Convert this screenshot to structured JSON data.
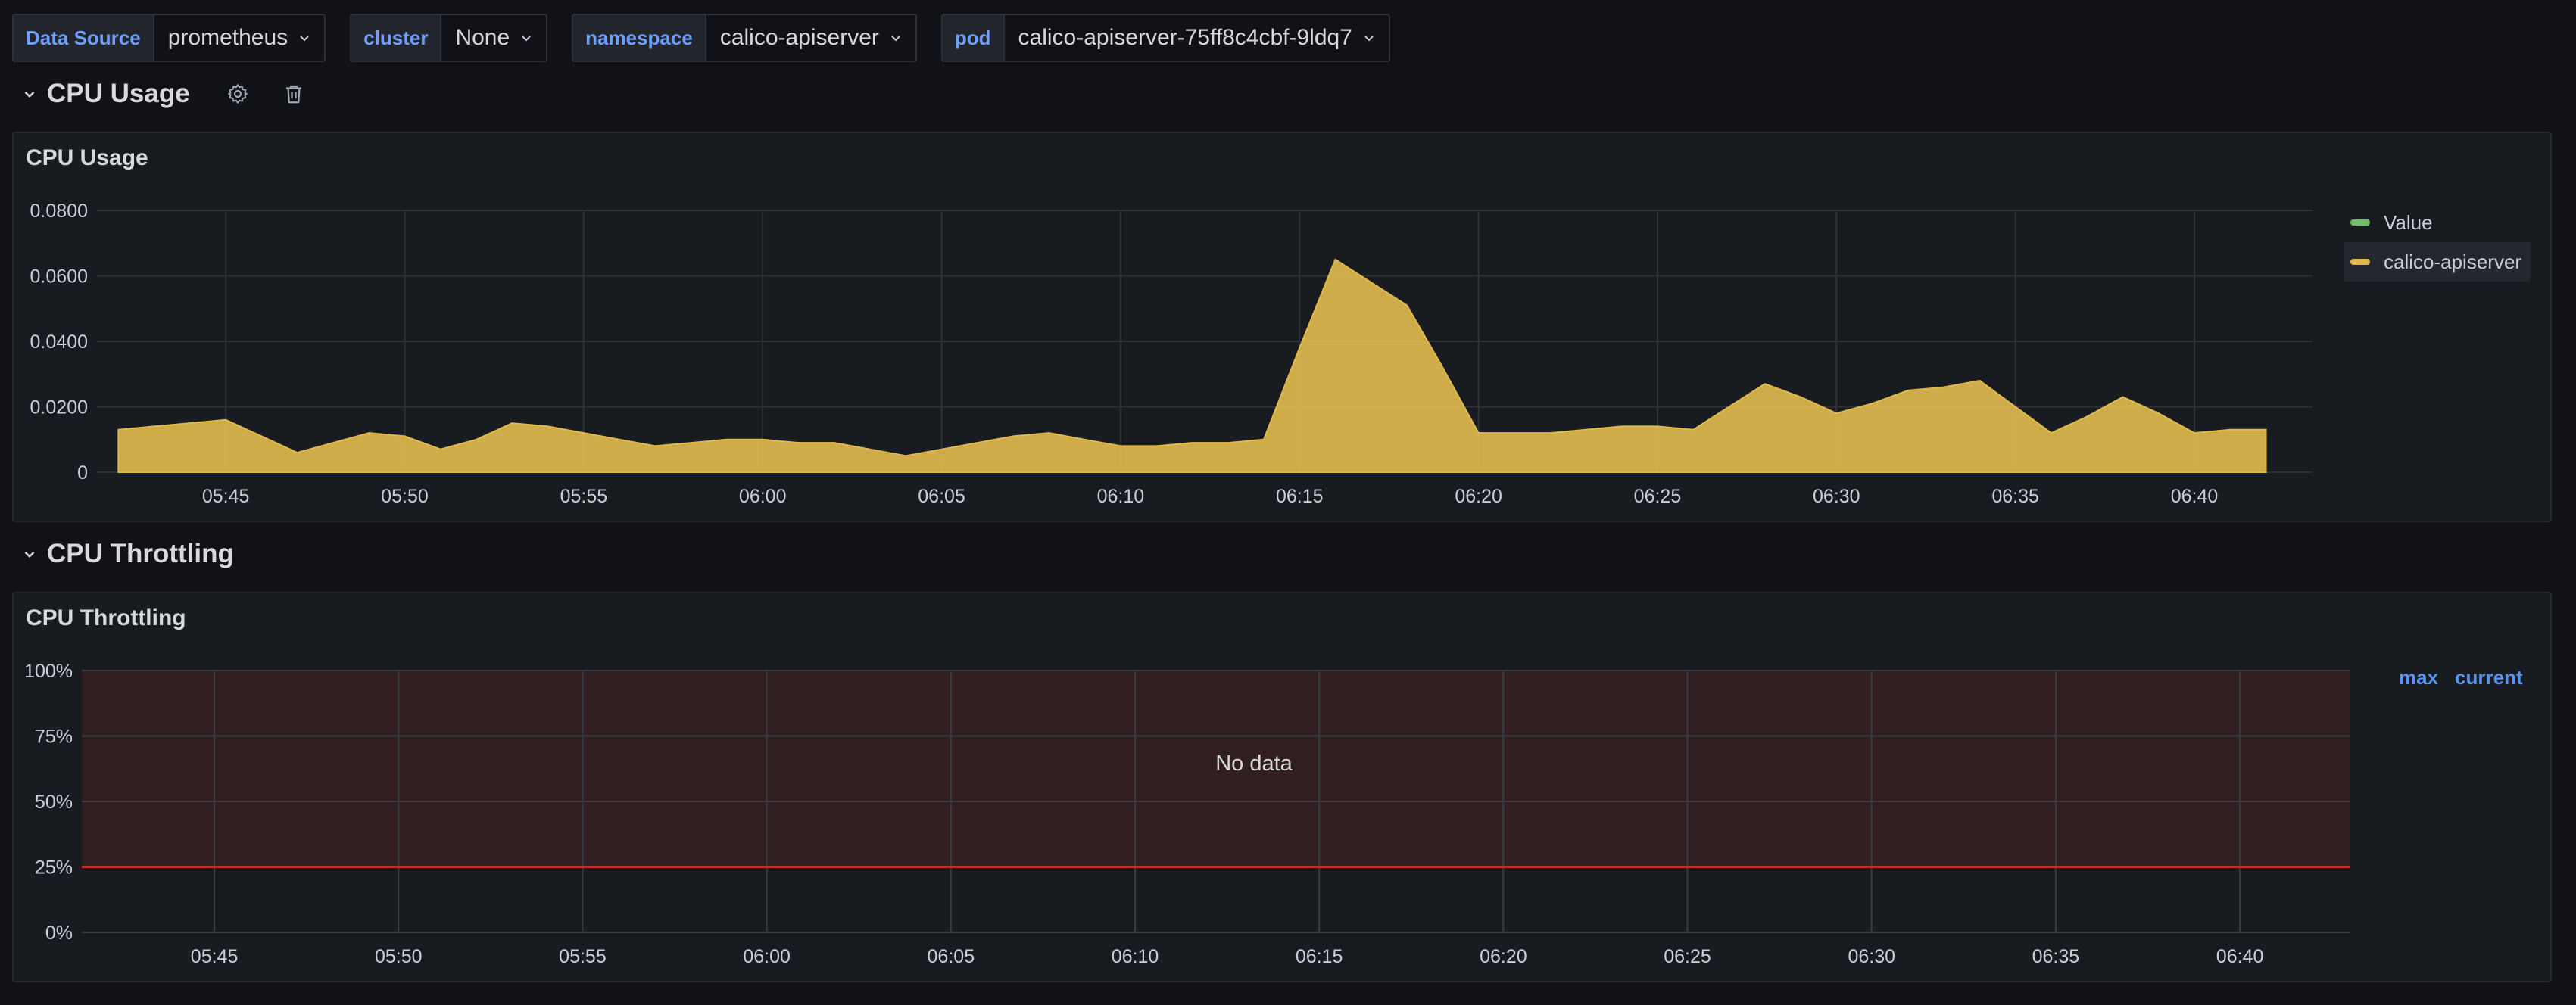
{
  "variables": [
    {
      "label": "Data Source",
      "value": "prometheus"
    },
    {
      "label": "cluster",
      "value": "None"
    },
    {
      "label": "namespace",
      "value": "calico-apiserver"
    },
    {
      "label": "pod",
      "value": "calico-apiserver-75ff8c4cbf-9ldq7"
    }
  ],
  "rows": {
    "cpu_usage": {
      "title": "CPU Usage"
    },
    "cpu_throttling": {
      "title": "CPU Throttling"
    }
  },
  "icons": {
    "row_settings": "gear-icon",
    "row_delete": "trash-icon",
    "collapse": "chevron-down-icon"
  },
  "colors": {
    "series": "#e0b94e",
    "value_legend": "#73bf69",
    "threshold": "#c4342d",
    "link": "#5794f2"
  },
  "panels": {
    "cpu_usage": {
      "title": "CPU Usage",
      "legend": [
        {
          "name": "Value",
          "color": "#73bf69"
        },
        {
          "name": "calico-apiserver",
          "color": "#e0b94e"
        }
      ]
    },
    "cpu_throttling": {
      "title": "CPU Throttling",
      "no_data": "No data",
      "legend_headers": [
        "max",
        "current"
      ]
    }
  },
  "chart_data": [
    {
      "type": "area",
      "title": "CPU Usage",
      "series": [
        {
          "name": "calico-apiserver",
          "x": [
            "05:42",
            "05:43",
            "05:44",
            "05:45",
            "05:46",
            "05:47",
            "05:48",
            "05:49",
            "05:50",
            "05:51",
            "05:52",
            "05:53",
            "05:54",
            "05:55",
            "05:56",
            "05:57",
            "05:58",
            "05:59",
            "06:00",
            "06:01",
            "06:02",
            "06:03",
            "06:04",
            "06:05",
            "06:06",
            "06:07",
            "06:08",
            "06:09",
            "06:10",
            "06:11",
            "06:12",
            "06:13",
            "06:14",
            "06:15",
            "06:16",
            "06:17",
            "06:18",
            "06:19",
            "06:20",
            "06:21",
            "06:22",
            "06:23",
            "06:24",
            "06:25",
            "06:26",
            "06:27",
            "06:28",
            "06:29",
            "06:30",
            "06:31",
            "06:32",
            "06:33",
            "06:34",
            "06:35",
            "06:36",
            "06:37",
            "06:38",
            "06:39",
            "06:40",
            "06:41",
            "06:42"
          ],
          "values": [
            0.013,
            0.014,
            0.015,
            0.016,
            0.011,
            0.006,
            0.009,
            0.012,
            0.011,
            0.007,
            0.01,
            0.015,
            0.014,
            0.012,
            0.01,
            0.008,
            0.009,
            0.01,
            0.01,
            0.009,
            0.009,
            0.007,
            0.005,
            0.007,
            0.009,
            0.011,
            0.012,
            0.01,
            0.008,
            0.008,
            0.009,
            0.009,
            0.01,
            0.038,
            0.065,
            0.058,
            0.051,
            0.032,
            0.012,
            0.012,
            0.012,
            0.013,
            0.014,
            0.014,
            0.013,
            0.02,
            0.027,
            0.023,
            0.018,
            0.021,
            0.025,
            0.026,
            0.028,
            0.02,
            0.012,
            0.017,
            0.023,
            0.018,
            0.012,
            0.013,
            0.013
          ]
        }
      ],
      "x_ticks": [
        "05:45",
        "05:50",
        "05:55",
        "06:00",
        "06:05",
        "06:10",
        "06:15",
        "06:20",
        "06:25",
        "06:30",
        "06:35",
        "06:40"
      ],
      "y_ticks": [
        "0",
        "0.0200",
        "0.0400",
        "0.0600",
        "0.0800"
      ],
      "ylim": [
        0,
        0.08
      ],
      "grid": true,
      "legend_position": "right"
    },
    {
      "type": "line",
      "title": "CPU Throttling",
      "series": [],
      "x_ticks": [
        "05:45",
        "05:50",
        "05:55",
        "06:00",
        "06:05",
        "06:10",
        "06:15",
        "06:20",
        "06:25",
        "06:30",
        "06:35",
        "06:40"
      ],
      "y_ticks": [
        "0%",
        "25%",
        "50%",
        "75%",
        "100%"
      ],
      "ylim": [
        0,
        100
      ],
      "threshold": 25,
      "grid": true,
      "legend_position": "right"
    }
  ]
}
